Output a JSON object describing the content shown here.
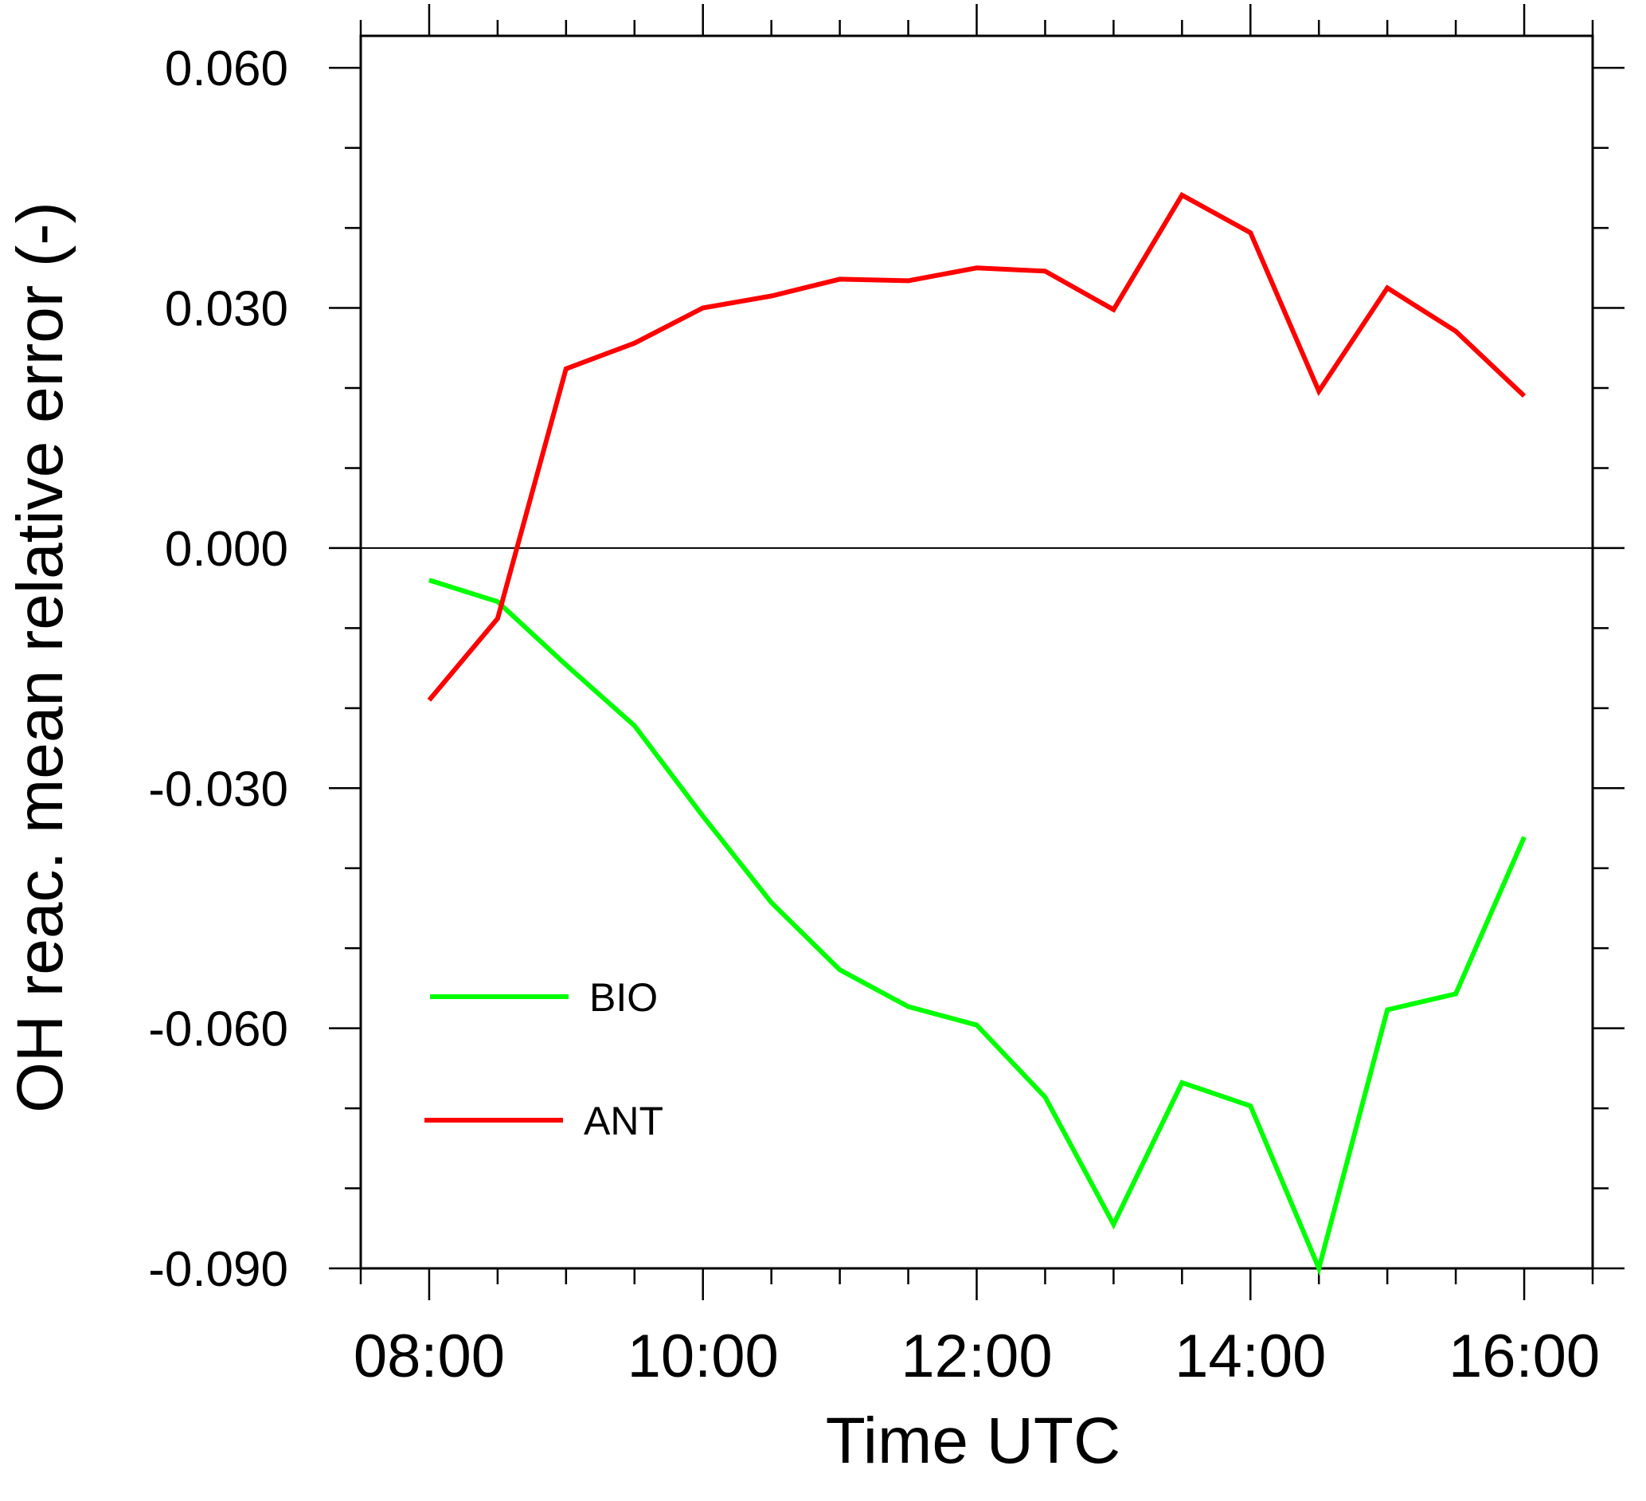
{
  "chart_data": {
    "type": "line",
    "title": "",
    "xlabel": "Time UTC",
    "ylabel": "OH reac. mean relative error (-)",
    "xlim": [
      "07:30",
      "16:30"
    ],
    "ylim": [
      -0.09,
      0.064
    ],
    "x_ticks": [
      "08:00",
      "10:00",
      "12:00",
      "14:00",
      "16:00"
    ],
    "y_ticks": [
      "0.060",
      "0.030",
      "0.000",
      "-0.030",
      "-0.060",
      "-0.090"
    ],
    "x": [
      "08:00",
      "08:30",
      "09:00",
      "09:30",
      "10:00",
      "10:30",
      "11:00",
      "11:30",
      "12:00",
      "12:30",
      "13:00",
      "13:30",
      "14:00",
      "14:30",
      "15:00",
      "15:30",
      "16:00"
    ],
    "series": [
      {
        "name": "BIO",
        "color": "#00ff00",
        "values": [
          -0.004,
          -0.0067,
          -0.0146,
          -0.0222,
          -0.0335,
          -0.0443,
          -0.0527,
          -0.0573,
          -0.0596,
          -0.0686,
          -0.0845,
          -0.0668,
          -0.0697,
          -0.09,
          -0.0577,
          -0.0557,
          -0.0361
        ]
      },
      {
        "name": "ANT",
        "color": "#ff0000",
        "values": [
          -0.019,
          -0.0088,
          0.0224,
          0.0256,
          0.03,
          0.0315,
          0.0336,
          0.0334,
          0.035,
          0.0346,
          0.0298,
          0.0441,
          0.0394,
          0.0196,
          0.0325,
          0.0271,
          0.019
        ]
      }
    ],
    "zero_line": true,
    "grid": false,
    "legend_position": "lower-left inside plot"
  }
}
